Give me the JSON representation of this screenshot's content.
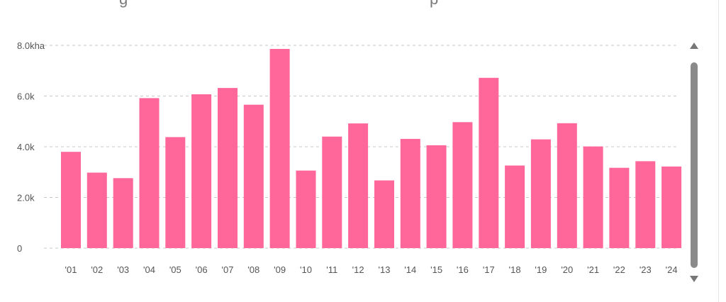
{
  "header": {
    "title_fragments": [
      "g",
      "p"
    ]
  },
  "chart_data": {
    "type": "bar",
    "categories": [
      "'01",
      "'02",
      "'03",
      "'04",
      "'05",
      "'06",
      "'07",
      "'08",
      "'09",
      "'10",
      "'11",
      "'12",
      "'13",
      "'14",
      "'15",
      "'16",
      "'17",
      "'18",
      "'19",
      "'20",
      "'21",
      "'22",
      "'23",
      "'24"
    ],
    "values": [
      3800,
      2980,
      2760,
      5920,
      4380,
      6070,
      6320,
      5660,
      7860,
      3060,
      4400,
      4920,
      2670,
      4310,
      4060,
      4970,
      6720,
      3260,
      4290,
      4930,
      4010,
      3170,
      3430,
      3220
    ],
    "y_ticks": [
      {
        "value": 0,
        "label": "0"
      },
      {
        "value": 2000,
        "label": "2.0k"
      },
      {
        "value": 4000,
        "label": "4.0k"
      },
      {
        "value": 6000,
        "label": "6.0k"
      },
      {
        "value": 8000,
        "label": "8.0kha"
      }
    ],
    "ylim": [
      0,
      8000
    ],
    "unit": "kha",
    "grid": true,
    "bar_color": "#ff6699"
  }
}
